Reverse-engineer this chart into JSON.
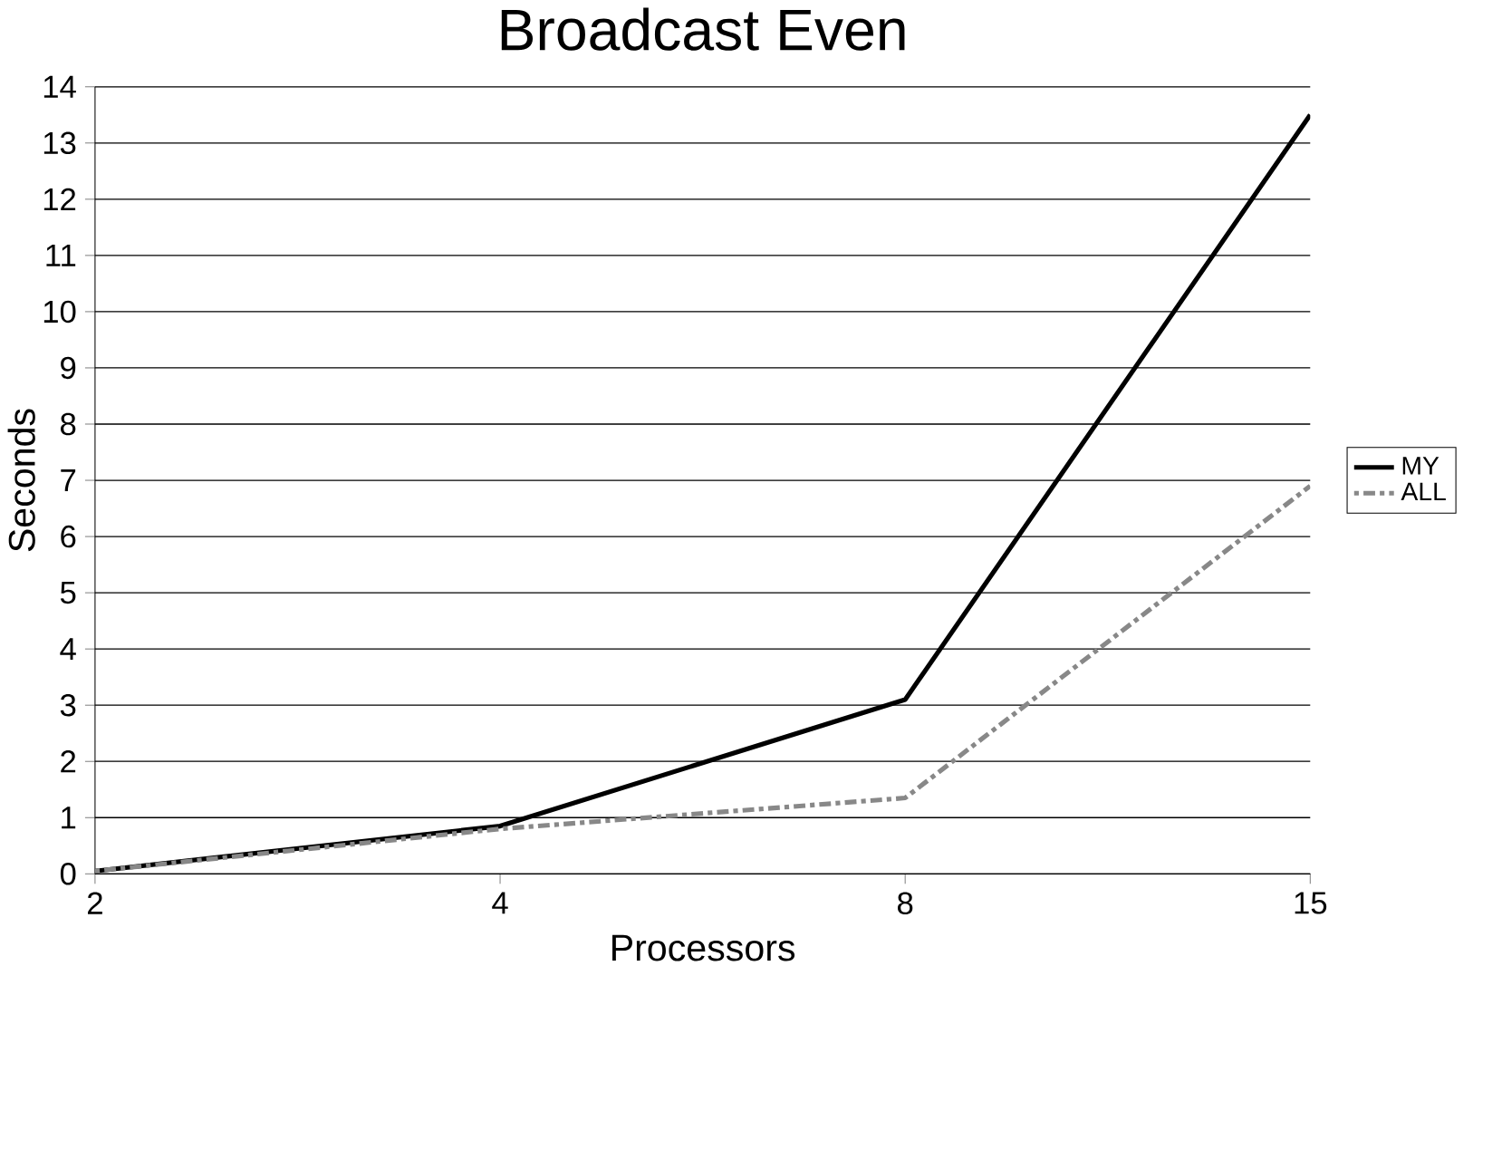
{
  "chart_data": {
    "type": "line",
    "title": "Broadcast Even",
    "xlabel": "Processors",
    "ylabel": "Seconds",
    "categories": [
      "2",
      "4",
      "8",
      "15"
    ],
    "series": [
      {
        "name": "MY",
        "color": "#000000",
        "line_style": "solid",
        "values": [
          0.05,
          0.85,
          3.1,
          13.5
        ]
      },
      {
        "name": "ALL",
        "color": "#888888",
        "line_style": "dotted",
        "values": [
          0.05,
          0.8,
          1.35,
          6.9
        ]
      }
    ],
    "ylim": [
      0,
      14
    ],
    "yticks": [
      0,
      1,
      2,
      3,
      4,
      5,
      6,
      7,
      8,
      9,
      10,
      11,
      12,
      13,
      14
    ],
    "grid": "y",
    "legend": "right",
    "marker": "none"
  }
}
